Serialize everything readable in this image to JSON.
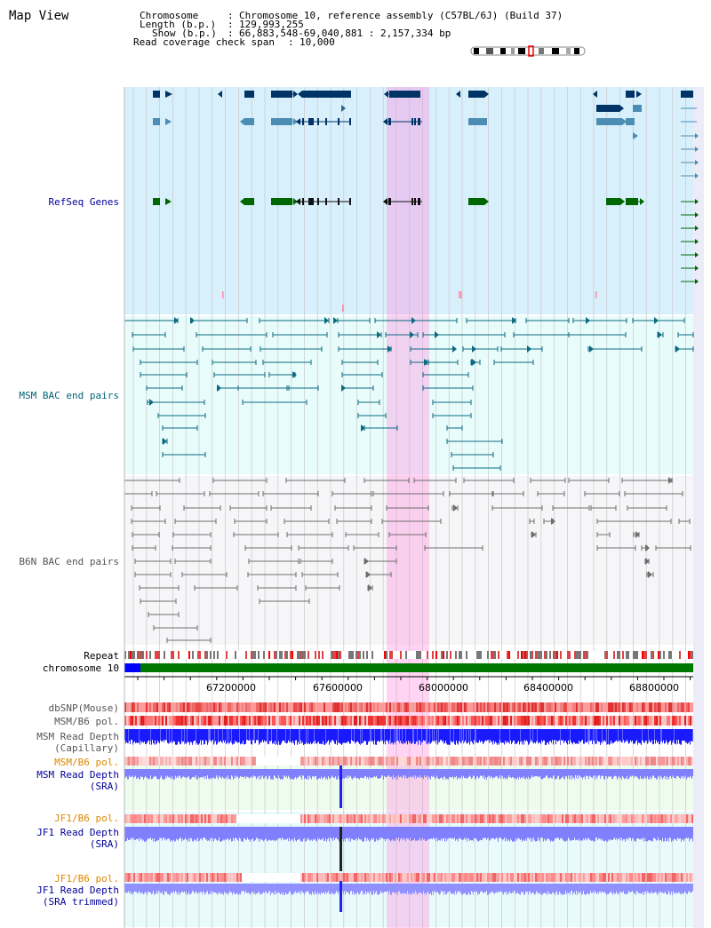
{
  "title": "Map View",
  "header": {
    "chromosome_key": "Chromosome",
    "chromosome_val": "Chromosome 10, reference assembly (C57BL/6J) (Build 37)",
    "length_key": "Length (b.p.)",
    "length_val": "129,993,255",
    "show_key": "Show (b.p.)",
    "show_val": "66,883,548-69,040,881 : 2,157,334 bp",
    "span_key": "Read coverage check span",
    "span_val": "10,000"
  },
  "tracks": {
    "refseq": "RefSeq Genes",
    "msm_bac": "MSM BAC end pairs",
    "b6n_bac": "B6N BAC end pairs",
    "repeat": "Repeat",
    "chromosome": "chromosome 10",
    "dbsnp": "dbSNP(Mouse)",
    "msm_b6_pol1": "MSM/B6 pol.",
    "msm_read_depth_cap_1": "MSM Read Depth",
    "msm_read_depth_cap_2": "(Capillary)",
    "msm_b6_pol2": "MSM/B6 pol.",
    "msm_read_depth_sra_1": "MSM Read Depth",
    "msm_read_depth_sra_2": "(SRA)",
    "jf1_b6_pol1": "JF1/B6 pol.",
    "jf1_read_depth_sra_1": "JF1 Read Depth",
    "jf1_read_depth_sra_2": "(SRA)",
    "jf1_b6_pol2": "JF1/B6 pol.",
    "jf1_read_depth_trim_1": "JF1 Read Depth",
    "jf1_read_depth_trim_2": "(SRA trimmed)"
  },
  "axis": {
    "ticks": [
      "67200000",
      "67600000",
      "68000000",
      "68400000",
      "68800000"
    ]
  },
  "colors": {
    "label_black": "#000000",
    "label_blue": "#000099",
    "label_teal": "#006677",
    "label_gray": "#555555",
    "label_orange": "#dd8800",
    "highlight": "#ff88dd",
    "refseq_bg": "#d8f0fc",
    "gene_dark": "#003366",
    "gene_mid": "#4c8db3",
    "gene_green": "#006600",
    "chrom_bar": "#007700",
    "depth_blue": "#1a1aff",
    "depth_light": "#8080ff"
  }
}
